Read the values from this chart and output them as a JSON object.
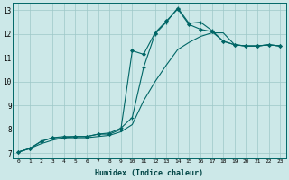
{
  "xlabel": "Humidex (Indice chaleur)",
  "bg_color": "#cce8e8",
  "grid_color": "#9ec8c8",
  "line_color": "#006666",
  "xlim": [
    -0.5,
    23.5
  ],
  "ylim": [
    6.8,
    13.3
  ],
  "xticks": [
    0,
    1,
    2,
    3,
    4,
    5,
    6,
    7,
    8,
    9,
    10,
    11,
    12,
    13,
    14,
    15,
    16,
    17,
    18,
    19,
    20,
    21,
    22,
    23
  ],
  "yticks": [
    7,
    8,
    9,
    10,
    11,
    12,
    13
  ],
  "line1_x": [
    0,
    1,
    2,
    3,
    4,
    5,
    6,
    7,
    8,
    9,
    10,
    11,
    12,
    13,
    14,
    15,
    16,
    17,
    18,
    19,
    20,
    21,
    22,
    23
  ],
  "line1_y": [
    7.05,
    7.2,
    7.5,
    7.65,
    7.65,
    7.7,
    7.7,
    7.8,
    7.85,
    8.05,
    8.5,
    10.6,
    12.0,
    12.5,
    13.1,
    12.45,
    12.5,
    12.15,
    11.7,
    11.55,
    11.5,
    11.5,
    11.55,
    11.5
  ],
  "line2_x": [
    0,
    1,
    2,
    3,
    4,
    5,
    6,
    7,
    8,
    9,
    10,
    11,
    12,
    13,
    14,
    15,
    16,
    17,
    18,
    19,
    20,
    21,
    22,
    23
  ],
  "line2_y": [
    7.05,
    7.2,
    7.5,
    7.65,
    7.7,
    7.7,
    7.7,
    7.8,
    7.8,
    8.0,
    11.3,
    11.15,
    12.05,
    12.55,
    13.05,
    12.4,
    12.2,
    12.1,
    11.7,
    11.55,
    11.5,
    11.5,
    11.55,
    11.5
  ],
  "line3_x": [
    0,
    1,
    2,
    3,
    4,
    5,
    6,
    7,
    8,
    9,
    10,
    11,
    12,
    13,
    14,
    15,
    16,
    17,
    18,
    19,
    20,
    21,
    22,
    23
  ],
  "line3_y": [
    7.05,
    7.2,
    7.4,
    7.55,
    7.65,
    7.65,
    7.65,
    7.7,
    7.75,
    7.9,
    8.2,
    9.2,
    10.0,
    10.7,
    11.35,
    11.65,
    11.9,
    12.05,
    12.05,
    11.55,
    11.5,
    11.5,
    11.55,
    11.5
  ]
}
